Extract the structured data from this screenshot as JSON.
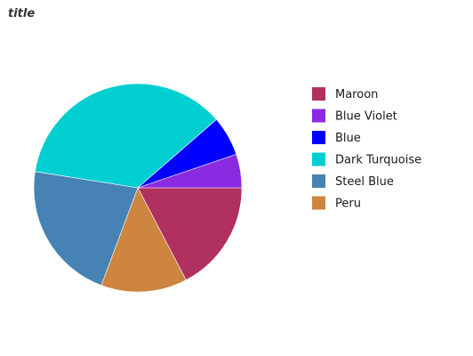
{
  "chart_data": {
    "type": "pie",
    "title": "title",
    "legend_position": "right",
    "slices": [
      {
        "label": "Maroon",
        "value": 16.3,
        "color": "#b03060"
      },
      {
        "label": "Blue Violet",
        "value": 4.9,
        "color": "#8a2be2"
      },
      {
        "label": "Blue",
        "value": 5.8,
        "color": "#0000ff"
      },
      {
        "label": "Dark Turquoise",
        "value": 34.0,
        "color": "#00ced1"
      },
      {
        "label": "Steel Blue",
        "value": 20.5,
        "color": "#4682b4"
      },
      {
        "label": "Peru",
        "value": 12.6,
        "color": "#cd853f"
      }
    ],
    "slice_order_drawn": [
      "Maroon",
      "Peru",
      "Steel Blue",
      "Dark Turquoise",
      "Blue",
      "Blue Violet"
    ]
  }
}
